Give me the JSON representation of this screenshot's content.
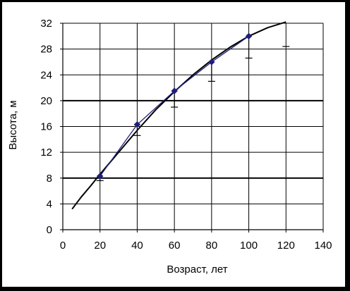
{
  "chart_data": {
    "type": "line",
    "title": "",
    "xlabel": "Возраст, лет",
    "ylabel": "Высота, м",
    "xlim": [
      0,
      140
    ],
    "ylim": [
      0,
      32
    ],
    "x_ticks": [
      0,
      20,
      40,
      60,
      80,
      100,
      120,
      140
    ],
    "y_ticks": [
      0,
      4,
      8,
      12,
      16,
      20,
      24,
      28,
      32
    ],
    "grid": true,
    "legend": "none",
    "series": [
      {
        "kind": "observed-mean",
        "color": "#1f1f7a",
        "marker": "diamond",
        "x": [
          20,
          40,
          60,
          80,
          100
        ],
        "y": [
          8.3,
          16.3,
          21.5,
          26.0,
          30.0
        ],
        "error_lower": [
          7.6,
          14.6,
          19.0,
          23.0,
          26.6
        ],
        "error_upper_x120": 28.4
      },
      {
        "kind": "fitted-curve",
        "color": "#000000",
        "x": [
          5,
          10,
          15,
          20,
          25,
          30,
          40,
          50,
          60,
          70,
          80,
          90,
          100,
          110,
          120
        ],
        "y": [
          3.2,
          5.1,
          6.8,
          8.6,
          10.3,
          12.0,
          15.4,
          18.6,
          21.4,
          24.0,
          26.3,
          28.3,
          30.0,
          31.3,
          32.2
        ]
      }
    ],
    "extra_error_marker": {
      "x": 120,
      "y": 28.4
    }
  }
}
